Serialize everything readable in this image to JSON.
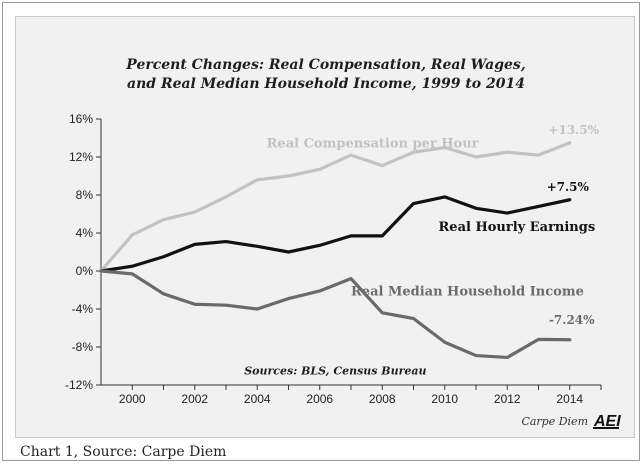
{
  "chart_data": {
    "type": "line",
    "title_line1": "Percent Changes: Real Compensation, Real Wages,",
    "title_line2": "and Real Median Household Income, 1999 to 2014",
    "x": [
      1999,
      2000,
      2001,
      2002,
      2003,
      2004,
      2005,
      2006,
      2007,
      2008,
      2009,
      2010,
      2011,
      2012,
      2013,
      2014
    ],
    "x_ticks": [
      "2000",
      "2002",
      "2004",
      "2006",
      "2008",
      "2010",
      "2012",
      "2014"
    ],
    "y_ticks": [
      "16%",
      "12%",
      "8%",
      "4%",
      "0%",
      "-4%",
      "-8%",
      "-12%"
    ],
    "ylim": [
      -12,
      16
    ],
    "xlim": [
      1999,
      2015
    ],
    "series": [
      {
        "name": "Real Compensation per Hour",
        "color": "#c2c2c2",
        "values": [
          0,
          3.8,
          5.4,
          6.2,
          7.8,
          9.6,
          10.0,
          10.7,
          12.2,
          11.1,
          12.5,
          13.0,
          12.0,
          12.5,
          12.2,
          13.5
        ],
        "end_label": "+13.5%"
      },
      {
        "name": "Real Hourly Earnings",
        "color": "#111111",
        "values": [
          0,
          0.5,
          1.5,
          2.8,
          3.1,
          2.6,
          2.0,
          2.7,
          3.7,
          3.7,
          7.1,
          7.8,
          6.6,
          6.1,
          6.8,
          7.5
        ],
        "end_label": "+7.5%"
      },
      {
        "name": "Real Median Household Income",
        "color": "#6a6a6a",
        "values": [
          0,
          -0.3,
          -2.4,
          -3.5,
          -3.6,
          -4.0,
          -2.9,
          -2.1,
          -0.8,
          -4.4,
          -5.0,
          -7.5,
          -8.9,
          -9.1,
          -7.2,
          -7.24
        ],
        "end_label": "-7.24%"
      }
    ],
    "sources": "Sources: BLS, Census Bureau",
    "credit": "Carpe Diem",
    "logo_text": "AEI",
    "grid": false
  },
  "caption": "Chart 1, Source: Carpe Diem"
}
